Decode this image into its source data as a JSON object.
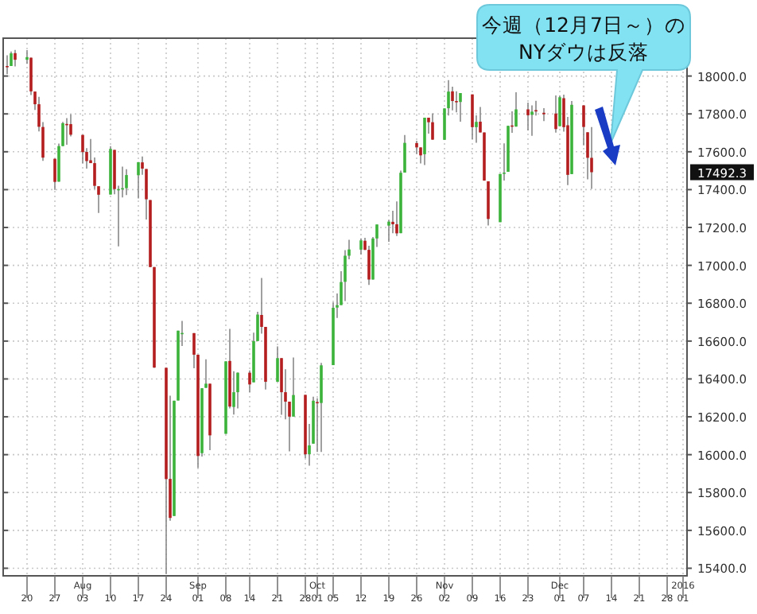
{
  "chart_data": {
    "type": "candlestick",
    "grid": true,
    "xlim": [
      "2015-07-14",
      "2016-01-02"
    ],
    "xticks": [
      {
        "value": "2015-07-20",
        "label": "20"
      },
      {
        "value": "2015-07-27",
        "label": "27"
      },
      {
        "value": "2015-08-03",
        "label": "Aug 03"
      },
      {
        "value": "2015-08-10",
        "label": "10"
      },
      {
        "value": "2015-08-17",
        "label": "17"
      },
      {
        "value": "2015-08-24",
        "label": "24"
      },
      {
        "value": "2015-09-01",
        "label": "Sep 01"
      },
      {
        "value": "2015-09-08",
        "label": "08"
      },
      {
        "value": "2015-09-14",
        "label": "14"
      },
      {
        "value": "2015-09-21",
        "label": "21"
      },
      {
        "value": "2015-09-28",
        "label": "28"
      },
      {
        "value": "2015-10-01",
        "label": "Oct 01"
      },
      {
        "value": "2015-10-05",
        "label": "05"
      },
      {
        "value": "2015-10-12",
        "label": "12"
      },
      {
        "value": "2015-10-19",
        "label": "19"
      },
      {
        "value": "2015-10-26",
        "label": "26"
      },
      {
        "value": "2015-11-02",
        "label": "Nov 02"
      },
      {
        "value": "2015-11-09",
        "label": "09"
      },
      {
        "value": "2015-11-16",
        "label": "16"
      },
      {
        "value": "2015-11-23",
        "label": "23"
      },
      {
        "value": "2015-12-01",
        "label": "Dec 01"
      },
      {
        "value": "2015-12-07",
        "label": "07"
      },
      {
        "value": "2015-12-14",
        "label": "14"
      },
      {
        "value": "2015-12-21",
        "label": "21"
      },
      {
        "value": "2015-12-28",
        "label": "28"
      },
      {
        "value": "2016-01-01",
        "label": "2016 01"
      }
    ],
    "ylim": [
      15360,
      18200
    ],
    "yticks": [
      {
        "value": 15400,
        "label": "15400.0"
      },
      {
        "value": 15600,
        "label": "15600.0"
      },
      {
        "value": 15800,
        "label": "15800.0"
      },
      {
        "value": 16000,
        "label": "16000.0"
      },
      {
        "value": 16200,
        "label": "16200.0"
      },
      {
        "value": 16400,
        "label": "16400.0"
      },
      {
        "value": 16600,
        "label": "16600.0"
      },
      {
        "value": 16800,
        "label": "16800.0"
      },
      {
        "value": 17000,
        "label": "17000.0"
      },
      {
        "value": 17200,
        "label": "17200.0"
      },
      {
        "value": 17400,
        "label": "17400.0"
      },
      {
        "value": 17600,
        "label": "17600.0"
      },
      {
        "value": 17800,
        "label": "17800.0"
      },
      {
        "value": 18000,
        "label": "18000.0"
      }
    ],
    "annotations": [
      "今週（12月7日～）の\nNYダウは反落",
      "17492.3"
    ],
    "x": [
      "2015-07-15",
      "2015-07-16",
      "2015-07-17",
      "2015-07-20",
      "2015-07-21",
      "2015-07-22",
      "2015-07-23",
      "2015-07-24",
      "2015-07-27",
      "2015-07-28",
      "2015-07-29",
      "2015-07-30",
      "2015-07-31",
      "2015-08-03",
      "2015-08-04",
      "2015-08-05",
      "2015-08-06",
      "2015-08-07",
      "2015-08-10",
      "2015-08-11",
      "2015-08-12",
      "2015-08-13",
      "2015-08-14",
      "2015-08-17",
      "2015-08-18",
      "2015-08-19",
      "2015-08-20",
      "2015-08-21",
      "2015-08-24",
      "2015-08-25",
      "2015-08-26",
      "2015-08-27",
      "2015-08-28",
      "2015-08-31",
      "2015-09-01",
      "2015-09-02",
      "2015-09-03",
      "2015-09-04",
      "2015-09-08",
      "2015-09-09",
      "2015-09-10",
      "2015-09-11",
      "2015-09-14",
      "2015-09-15",
      "2015-09-16",
      "2015-09-17",
      "2015-09-18",
      "2015-09-21",
      "2015-09-22",
      "2015-09-23",
      "2015-09-24",
      "2015-09-25",
      "2015-09-28",
      "2015-09-29",
      "2015-09-30",
      "2015-10-01",
      "2015-10-02",
      "2015-10-05",
      "2015-10-06",
      "2015-10-07",
      "2015-10-08",
      "2015-10-09",
      "2015-10-12",
      "2015-10-13",
      "2015-10-14",
      "2015-10-15",
      "2015-10-16",
      "2015-10-19",
      "2015-10-20",
      "2015-10-21",
      "2015-10-22",
      "2015-10-23",
      "2015-10-26",
      "2015-10-27",
      "2015-10-28",
      "2015-10-29",
      "2015-10-30",
      "2015-11-02",
      "2015-11-03",
      "2015-11-04",
      "2015-11-05",
      "2015-11-06",
      "2015-11-09",
      "2015-11-10",
      "2015-11-11",
      "2015-11-12",
      "2015-11-13",
      "2015-11-16",
      "2015-11-17",
      "2015-11-18",
      "2015-11-19",
      "2015-11-20",
      "2015-11-23",
      "2015-11-24",
      "2015-11-25",
      "2015-11-27",
      "2015-11-30",
      "2015-12-01",
      "2015-12-02",
      "2015-12-03",
      "2015-12-04",
      "2015-12-07",
      "2015-12-08",
      "2015-12-09"
    ],
    "ohlc": [
      [
        18053,
        18110,
        18010,
        18050
      ],
      [
        18053,
        18130,
        18053,
        18120
      ],
      [
        18121,
        18138,
        18051,
        18086
      ],
      [
        18086,
        18137,
        18064,
        18100
      ],
      [
        18097,
        18097,
        17900,
        17919
      ],
      [
        17918,
        17918,
        17821,
        17851
      ],
      [
        17851,
        17890,
        17707,
        17732
      ],
      [
        17731,
        17757,
        17552,
        17569
      ],
      [
        17563,
        17563,
        17399,
        17441
      ],
      [
        17442,
        17643,
        17442,
        17630
      ],
      [
        17630,
        17758,
        17630,
        17751
      ],
      [
        17747,
        17778,
        17637,
        17746
      ],
      [
        17746,
        17798,
        17681,
        17690
      ],
      [
        17689,
        17689,
        17539,
        17598
      ],
      [
        17599,
        17619,
        17511,
        17551
      ],
      [
        17555,
        17667,
        17540,
        17540
      ],
      [
        17540,
        17570,
        17403,
        17420
      ],
      [
        17418,
        17418,
        17277,
        17373
      ],
      [
        17374,
        17630,
        17374,
        17615
      ],
      [
        17610,
        17610,
        17376,
        17403
      ],
      [
        17398,
        17421,
        17100,
        17403
      ],
      [
        17403,
        17521,
        17359,
        17408
      ],
      [
        17408,
        17508,
        17371,
        17477
      ],
      [
        17476,
        17546,
        17353,
        17545
      ],
      [
        17544,
        17575,
        17478,
        17511
      ],
      [
        17509,
        17509,
        17242,
        17349
      ],
      [
        17345,
        17345,
        16990,
        16991
      ],
      [
        16991,
        16991,
        16459,
        16460
      ],
      [
        16459,
        16459,
        15370,
        15871
      ],
      [
        15872,
        16312,
        15651,
        15666
      ],
      [
        15676,
        16285,
        15676,
        16285
      ],
      [
        16286,
        16655,
        16286,
        16655
      ],
      [
        16643,
        16706,
        16574,
        16643
      ],
      [
        16642,
        16642,
        16456,
        16528
      ],
      [
        16528,
        16528,
        15930,
        15993
      ],
      [
        16008,
        16351,
        15990,
        16351
      ],
      [
        16353,
        16504,
        16353,
        16375
      ],
      [
        16375,
        16375,
        16024,
        16102
      ],
      [
        16110,
        16493,
        16110,
        16493
      ],
      [
        16495,
        16664,
        16244,
        16254
      ],
      [
        16252,
        16441,
        16212,
        16330
      ],
      [
        16330,
        16434,
        16244,
        16433
      ],
      [
        16433,
        16445,
        16330,
        16371
      ],
      [
        16382,
        16644,
        16382,
        16600
      ],
      [
        16600,
        16755,
        16600,
        16740
      ],
      [
        16738,
        16933,
        16639,
        16675
      ],
      [
        16675,
        16675,
        16344,
        16385
      ],
      [
        16385,
        16572,
        16385,
        16510
      ],
      [
        16510,
        16510,
        16211,
        16330
      ],
      [
        16330,
        16451,
        16187,
        16280
      ],
      [
        16280,
        16280,
        16017,
        16201
      ],
      [
        16201,
        16513,
        16201,
        16315
      ],
      [
        16316,
        16316,
        15982,
        16002
      ],
      [
        16002,
        16162,
        15942,
        16049
      ],
      [
        16058,
        16306,
        16058,
        16285
      ],
      [
        16278,
        16298,
        16014,
        16272
      ],
      [
        16273,
        16485,
        16014,
        16472
      ],
      [
        16473,
        16804,
        16473,
        16776
      ],
      [
        16777,
        16851,
        16722,
        16790
      ],
      [
        16790,
        16969,
        16790,
        16912
      ],
      [
        16913,
        17080,
        16811,
        17051
      ],
      [
        17051,
        17135,
        17032,
        17084
      ],
      [
        17083,
        17142,
        17057,
        17132
      ],
      [
        17130,
        17146,
        17080,
        17082
      ],
      [
        17082,
        17104,
        16897,
        16925
      ],
      [
        16925,
        17150,
        16925,
        17142
      ],
      [
        17142,
        17216,
        17097,
        17216
      ],
      [
        17210,
        17240,
        17125,
        17231
      ],
      [
        17230,
        17288,
        17170,
        17217
      ],
      [
        17217,
        17338,
        17155,
        17169
      ],
      [
        17170,
        17500,
        17170,
        17489
      ],
      [
        17490,
        17689,
        17490,
        17647
      ],
      [
        17646,
        17658,
        17589,
        17623
      ],
      [
        17623,
        17623,
        17538,
        17581
      ],
      [
        17587,
        17780,
        17530,
        17780
      ],
      [
        17780,
        17780,
        17696,
        17756
      ],
      [
        17756,
        17803,
        17663,
        17664
      ],
      [
        17663,
        17829,
        17663,
        17829
      ],
      [
        17830,
        17978,
        17791,
        17918
      ],
      [
        17919,
        17944,
        17819,
        17868
      ],
      [
        17868,
        17920,
        17808,
        17863
      ],
      [
        17863,
        17910,
        17759,
        17910
      ],
      [
        17903,
        17903,
        17666,
        17730
      ],
      [
        17730,
        17792,
        17648,
        17758
      ],
      [
        17759,
        17837,
        17702,
        17702
      ],
      [
        17702,
        17702,
        17447,
        17448
      ],
      [
        17444,
        17444,
        17211,
        17245
      ],
      [
        17228,
        17483,
        17228,
        17483
      ],
      [
        17486,
        17644,
        17448,
        17490
      ],
      [
        17494,
        17738,
        17494,
        17737
      ],
      [
        17739,
        17814,
        17700,
        17733
      ],
      [
        17733,
        17914,
        17733,
        17824
      ],
      [
        17824,
        17860,
        17713,
        17793
      ],
      [
        17795,
        17845,
        17684,
        17812
      ],
      [
        17820,
        17869,
        17791,
        17813
      ],
      [
        17806,
        17830,
        17762,
        17798
      ],
      [
        17802,
        17897,
        17701,
        17720
      ],
      [
        17735,
        17896,
        17735,
        17888
      ],
      [
        17883,
        17902,
        17706,
        17730
      ],
      [
        17740,
        17784,
        17424,
        17478
      ],
      [
        17482,
        17868,
        17482,
        17848
      ],
      [
        17845,
        17845,
        17634,
        17731
      ],
      [
        17703,
        17703,
        17454,
        17568
      ],
      [
        17568,
        17730,
        17404,
        17492
      ]
    ]
  }
}
